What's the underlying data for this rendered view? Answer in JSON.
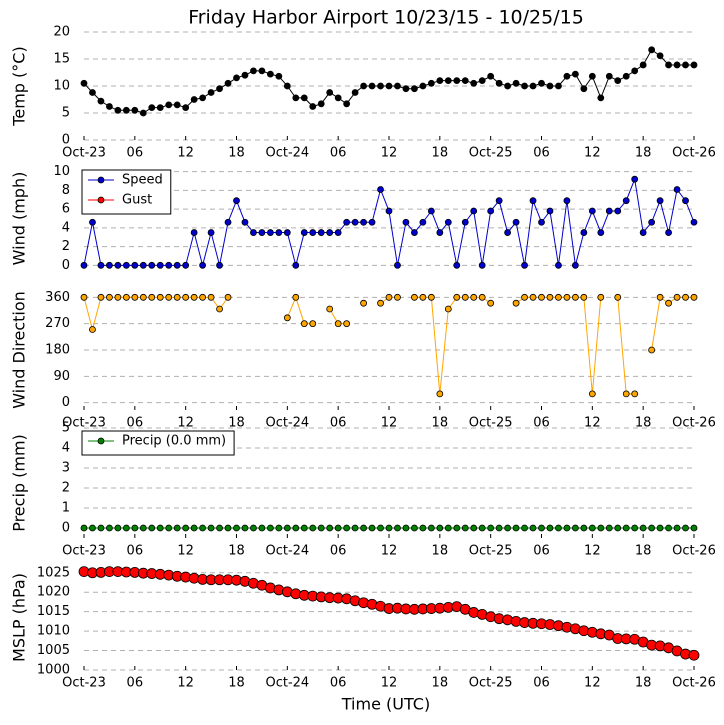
{
  "chart_data": [
    {
      "type": "line",
      "title": "Friday Harbor Airport 10/23/15 - 10/25/15",
      "ylabel": "Temp (°C)",
      "x": [
        0,
        1,
        2,
        3,
        4,
        5,
        6,
        7,
        8,
        9,
        10,
        11,
        12,
        13,
        14,
        15,
        16,
        17,
        18,
        19,
        20,
        21,
        22,
        23,
        24,
        25,
        26,
        27,
        28,
        29,
        30,
        31,
        32,
        33,
        34,
        35,
        36,
        37,
        38,
        39,
        40,
        41,
        42,
        43,
        44,
        45,
        46,
        47,
        48,
        49,
        50,
        51,
        52,
        53,
        54,
        55,
        56,
        57,
        58,
        59,
        60,
        61,
        62,
        63,
        64,
        65,
        66,
        67,
        68,
        69,
        70,
        71,
        72
      ],
      "xlim": [
        0,
        72
      ],
      "xticks": [
        {
          "value": 0,
          "label": "Oct-23"
        },
        {
          "value": 6,
          "label": "06"
        },
        {
          "value": 12,
          "label": "12"
        },
        {
          "value": 18,
          "label": "18"
        },
        {
          "value": 24,
          "label": "Oct-24"
        },
        {
          "value": 30,
          "label": "06"
        },
        {
          "value": 36,
          "label": "12"
        },
        {
          "value": 42,
          "label": "18"
        },
        {
          "value": 48,
          "label": "Oct-25"
        },
        {
          "value": 54,
          "label": "06"
        },
        {
          "value": 60,
          "label": "12"
        },
        {
          "value": 66,
          "label": "18"
        },
        {
          "value": 72,
          "label": "Oct-26"
        }
      ],
      "ylim": [
        0,
        20
      ],
      "yticks": [
        0,
        5,
        10,
        15,
        20
      ],
      "grid": true,
      "series": [
        {
          "color": "#000000",
          "values": [
            10.5,
            8.8,
            7.2,
            6.2,
            5.5,
            5.5,
            5.5,
            5.0,
            6.0,
            6.0,
            6.5,
            6.5,
            6.0,
            7.5,
            7.8,
            8.8,
            9.5,
            10.5,
            11.5,
            12.0,
            12.8,
            12.8,
            12.2,
            11.8,
            10.0,
            7.8,
            7.8,
            6.2,
            6.7,
            8.8,
            7.8,
            6.7,
            8.8,
            10.0,
            10.0,
            10.0,
            10.0,
            10.0,
            9.5,
            9.5,
            10.0,
            10.5,
            11.0,
            11.0,
            11.0,
            11.0,
            10.5,
            11.0,
            11.8,
            10.5,
            10.0,
            10.5,
            10.0,
            10.0,
            10.5,
            10.0,
            10.0,
            11.8,
            12.2,
            9.5,
            11.8,
            7.8,
            11.8,
            11.0,
            11.8,
            12.8,
            13.9,
            16.7,
            15.6,
            13.9,
            13.9,
            13.9,
            13.9
          ]
        }
      ]
    },
    {
      "type": "line",
      "ylabel": "Wind (mph)",
      "x": [
        0,
        1,
        2,
        3,
        4,
        5,
        6,
        7,
        8,
        9,
        10,
        11,
        12,
        13,
        14,
        15,
        16,
        17,
        18,
        19,
        20,
        21,
        22,
        23,
        24,
        25,
        26,
        27,
        28,
        29,
        30,
        31,
        32,
        33,
        34,
        35,
        36,
        37,
        38,
        39,
        40,
        41,
        42,
        43,
        44,
        45,
        46,
        47,
        48,
        49,
        50,
        51,
        52,
        53,
        54,
        55,
        56,
        57,
        58,
        59,
        60,
        61,
        62,
        63,
        64,
        65,
        66,
        67,
        68,
        69,
        70,
        71,
        72
      ],
      "xlim": [
        0,
        72
      ],
      "ylim": [
        -0.5,
        10.5
      ],
      "yticks": [
        0,
        2,
        4,
        6,
        8,
        10
      ],
      "grid": true,
      "legend": "upper left",
      "series": [
        {
          "name": "Speed",
          "color": "#0000cc",
          "values": [
            0,
            4.6,
            0,
            0,
            0,
            0,
            0,
            0,
            0,
            0,
            0,
            0,
            0,
            3.5,
            0,
            3.5,
            0,
            4.6,
            6.9,
            4.6,
            3.5,
            3.5,
            3.5,
            3.5,
            3.5,
            0,
            3.5,
            3.5,
            3.5,
            3.5,
            3.5,
            4.6,
            4.6,
            4.6,
            4.6,
            8.1,
            5.8,
            0,
            4.6,
            3.5,
            4.6,
            5.8,
            3.5,
            4.6,
            0,
            4.6,
            5.8,
            0,
            5.8,
            6.9,
            3.5,
            4.6,
            0,
            6.9,
            4.6,
            5.8,
            0,
            6.9,
            0,
            3.5,
            5.8,
            3.5,
            5.8,
            5.8,
            6.9,
            9.2,
            3.5,
            4.6,
            6.9,
            3.5,
            8.1,
            6.9,
            4.6
          ]
        },
        {
          "name": "Gust",
          "color": "#ff0000",
          "values": [
            null,
            null,
            null,
            null,
            null,
            null,
            null,
            null,
            null,
            null,
            null,
            null,
            null,
            null,
            null,
            null,
            null,
            null,
            null,
            null,
            null,
            null,
            null,
            null,
            null,
            null,
            null,
            null,
            null,
            null,
            null,
            null,
            null,
            null,
            null,
            null,
            null,
            null,
            null,
            null,
            null,
            null,
            null,
            null,
            null,
            null,
            null,
            null,
            null,
            null,
            null,
            null,
            null,
            null,
            null,
            null,
            null,
            null,
            null,
            null,
            null,
            null,
            null,
            null,
            null,
            null,
            null,
            null,
            null,
            null,
            null,
            null,
            null
          ]
        }
      ]
    },
    {
      "type": "line",
      "ylabel": "Wind Direction",
      "x": [
        0,
        1,
        2,
        3,
        4,
        5,
        6,
        7,
        8,
        9,
        10,
        11,
        12,
        13,
        14,
        15,
        16,
        17,
        18,
        19,
        20,
        21,
        22,
        23,
        24,
        25,
        26,
        27,
        28,
        29,
        30,
        31,
        32,
        33,
        34,
        35,
        36,
        37,
        38,
        39,
        40,
        41,
        42,
        43,
        44,
        45,
        46,
        47,
        48,
        49,
        50,
        51,
        52,
        53,
        54,
        55,
        56,
        57,
        58,
        59,
        60,
        61,
        62,
        63,
        64,
        65,
        66,
        67,
        68,
        69,
        70,
        71,
        72
      ],
      "xlim": [
        0,
        72
      ],
      "xticks": [
        {
          "value": 0,
          "label": "Oct-23"
        },
        {
          "value": 6,
          "label": "06"
        },
        {
          "value": 12,
          "label": "12"
        },
        {
          "value": 18,
          "label": "18"
        },
        {
          "value": 24,
          "label": "Oct-24"
        },
        {
          "value": 30,
          "label": "06"
        },
        {
          "value": 36,
          "label": "12"
        },
        {
          "value": 42,
          "label": "18"
        },
        {
          "value": 48,
          "label": "Oct-25"
        },
        {
          "value": 54,
          "label": "06"
        },
        {
          "value": 60,
          "label": "12"
        },
        {
          "value": 66,
          "label": "18"
        },
        {
          "value": 72,
          "label": "Oct-26"
        }
      ],
      "ylim": [
        -25,
        385
      ],
      "yticks": [
        0,
        90,
        180,
        270,
        360
      ],
      "grid": true,
      "series": [
        {
          "color": "#ffa500",
          "values": [
            360,
            250,
            360,
            360,
            360,
            360,
            360,
            360,
            360,
            360,
            360,
            360,
            360,
            360,
            360,
            360,
            320,
            360,
            null,
            null,
            null,
            null,
            null,
            null,
            290,
            360,
            270,
            270,
            null,
            320,
            270,
            270,
            null,
            340,
            null,
            340,
            360,
            360,
            null,
            360,
            360,
            360,
            30,
            320,
            360,
            360,
            360,
            360,
            340,
            null,
            null,
            340,
            360,
            360,
            360,
            360,
            360,
            360,
            360,
            360,
            30,
            360,
            null,
            360,
            30,
            30,
            null,
            180,
            360,
            340,
            360,
            360,
            360
          ]
        }
      ]
    },
    {
      "type": "line",
      "ylabel": "Precip (mm)",
      "x": [
        0,
        1,
        2,
        3,
        4,
        5,
        6,
        7,
        8,
        9,
        10,
        11,
        12,
        13,
        14,
        15,
        16,
        17,
        18,
        19,
        20,
        21,
        22,
        23,
        24,
        25,
        26,
        27,
        28,
        29,
        30,
        31,
        32,
        33,
        34,
        35,
        36,
        37,
        38,
        39,
        40,
        41,
        42,
        43,
        44,
        45,
        46,
        47,
        48,
        49,
        50,
        51,
        52,
        53,
        54,
        55,
        56,
        57,
        58,
        59,
        60,
        61,
        62,
        63,
        64,
        65,
        66,
        67,
        68,
        69,
        70,
        71,
        72
      ],
      "xlim": [
        0,
        72
      ],
      "xticks": [
        {
          "value": 0,
          "label": "Oct-23"
        },
        {
          "value": 6,
          "label": "06"
        },
        {
          "value": 12,
          "label": "12"
        },
        {
          "value": 18,
          "label": "18"
        },
        {
          "value": 24,
          "label": "Oct-24"
        },
        {
          "value": 30,
          "label": "06"
        },
        {
          "value": 36,
          "label": "12"
        },
        {
          "value": 42,
          "label": "18"
        },
        {
          "value": 48,
          "label": "Oct-25"
        },
        {
          "value": 54,
          "label": "06"
        },
        {
          "value": 60,
          "label": "12"
        },
        {
          "value": 66,
          "label": "18"
        },
        {
          "value": 72,
          "label": "Oct-26"
        }
      ],
      "ylim": [
        -0.5,
        5
      ],
      "yticks": [
        0,
        1,
        2,
        3,
        4,
        5
      ],
      "grid": true,
      "legend": "upper left",
      "series": [
        {
          "name": "Precip (0.0 mm)",
          "color": "#008000",
          "values": [
            0,
            0,
            0,
            0,
            0,
            0,
            0,
            0,
            0,
            0,
            0,
            0,
            0,
            0,
            0,
            0,
            0,
            0,
            0,
            0,
            0,
            0,
            0,
            0,
            0,
            0,
            0,
            0,
            0,
            0,
            0,
            0,
            0,
            0,
            0,
            0,
            0,
            0,
            0,
            0,
            0,
            0,
            0,
            0,
            0,
            0,
            0,
            0,
            0,
            0,
            0,
            0,
            0,
            0,
            0,
            0,
            0,
            0,
            0,
            0,
            0,
            0,
            0,
            0,
            0,
            0,
            0,
            0,
            0,
            0,
            0,
            0,
            0
          ]
        }
      ]
    },
    {
      "type": "line",
      "ylabel": "MSLP (hPa)",
      "xlabel": "Time (UTC)",
      "x": [
        0,
        1,
        2,
        3,
        4,
        5,
        6,
        7,
        8,
        9,
        10,
        11,
        12,
        13,
        14,
        15,
        16,
        17,
        18,
        19,
        20,
        21,
        22,
        23,
        24,
        25,
        26,
        27,
        28,
        29,
        30,
        31,
        32,
        33,
        34,
        35,
        36,
        37,
        38,
        39,
        40,
        41,
        42,
        43,
        44,
        45,
        46,
        47,
        48,
        49,
        50,
        51,
        52,
        53,
        54,
        55,
        56,
        57,
        58,
        59,
        60,
        61,
        62,
        63,
        64,
        65,
        66,
        67,
        68,
        69,
        70,
        71,
        72
      ],
      "xlim": [
        0,
        72
      ],
      "xticks": [
        {
          "value": 0,
          "label": "Oct-23"
        },
        {
          "value": 6,
          "label": "06"
        },
        {
          "value": 12,
          "label": "12"
        },
        {
          "value": 18,
          "label": "18"
        },
        {
          "value": 24,
          "label": "Oct-24"
        },
        {
          "value": 30,
          "label": "06"
        },
        {
          "value": 36,
          "label": "12"
        },
        {
          "value": 42,
          "label": "18"
        },
        {
          "value": 48,
          "label": "Oct-25"
        },
        {
          "value": 54,
          "label": "06"
        },
        {
          "value": 60,
          "label": "12"
        },
        {
          "value": 66,
          "label": "18"
        },
        {
          "value": 72,
          "label": "Oct-26"
        }
      ],
      "ylim": [
        1000,
        1027
      ],
      "yticks": [
        1000,
        1005,
        1010,
        1015,
        1020,
        1025
      ],
      "grid": true,
      "series": [
        {
          "color": "#ff0000",
          "values": [
            1025.3,
            1025.0,
            1025.1,
            1025.3,
            1025.3,
            1025.2,
            1025.1,
            1024.9,
            1024.8,
            1024.6,
            1024.4,
            1024.1,
            1023.9,
            1023.6,
            1023.3,
            1023.2,
            1023.2,
            1023.2,
            1023.1,
            1022.8,
            1022.3,
            1021.8,
            1021.1,
            1020.6,
            1020.1,
            1019.6,
            1019.2,
            1019.0,
            1018.8,
            1018.6,
            1018.5,
            1018.3,
            1017.8,
            1017.3,
            1016.9,
            1016.4,
            1015.8,
            1015.9,
            1015.7,
            1015.6,
            1015.7,
            1015.8,
            1015.9,
            1016.1,
            1016.3,
            1015.6,
            1014.8,
            1014.3,
            1013.7,
            1013.2,
            1012.9,
            1012.5,
            1012.2,
            1012.0,
            1011.9,
            1011.7,
            1011.4,
            1011.0,
            1010.6,
            1010.1,
            1009.7,
            1009.3,
            1009.0,
            1008.1,
            1008.0,
            1007.9,
            1007.2,
            1006.4,
            1006.2,
            1005.7,
            1004.9,
            1004.1,
            1003.8
          ]
        }
      ]
    }
  ]
}
